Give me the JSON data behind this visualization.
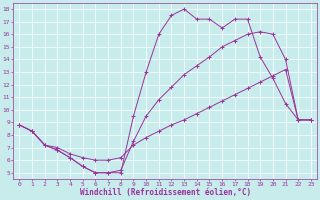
{
  "xlabel": "Windchill (Refroidissement éolien,°C)",
  "xlim": [
    -0.5,
    23.5
  ],
  "ylim": [
    4.5,
    18.5
  ],
  "xticks": [
    0,
    1,
    2,
    3,
    4,
    5,
    6,
    7,
    8,
    9,
    10,
    11,
    12,
    13,
    14,
    15,
    16,
    17,
    18,
    19,
    20,
    21,
    22,
    23
  ],
  "yticks": [
    5,
    6,
    7,
    8,
    9,
    10,
    11,
    12,
    13,
    14,
    15,
    16,
    17,
    18
  ],
  "background_color": "#c8ecec",
  "grid_color": "#ffffff",
  "line_color": "#993399",
  "line1_x": [
    0,
    1,
    2,
    3,
    4,
    5,
    6,
    7,
    8,
    9,
    10,
    11,
    12,
    13,
    14,
    15,
    16,
    17,
    18,
    19,
    20,
    21,
    22,
    23
  ],
  "line1_y": [
    8.8,
    8.3,
    7.2,
    6.8,
    6.2,
    5.5,
    5.0,
    5.0,
    5.0,
    9.5,
    13.0,
    16.0,
    17.5,
    18.0,
    17.2,
    17.2,
    16.5,
    17.2,
    17.2,
    14.2,
    12.5,
    10.5,
    9.2,
    9.2
  ],
  "line2_x": [
    0,
    1,
    2,
    3,
    4,
    5,
    6,
    7,
    8,
    9,
    10,
    11,
    12,
    13,
    14,
    15,
    16,
    17,
    18,
    19,
    20,
    21,
    22,
    23
  ],
  "line2_y": [
    8.8,
    8.3,
    7.2,
    6.8,
    6.2,
    5.5,
    5.0,
    5.0,
    5.2,
    7.5,
    9.5,
    10.8,
    11.8,
    12.8,
    13.5,
    14.2,
    15.0,
    15.5,
    16.0,
    16.2,
    16.0,
    14.0,
    9.2,
    9.2
  ],
  "line3_x": [
    0,
    1,
    2,
    3,
    4,
    5,
    6,
    7,
    8,
    9,
    10,
    11,
    12,
    13,
    14,
    15,
    16,
    17,
    18,
    19,
    20,
    21,
    22,
    23
  ],
  "line3_y": [
    8.8,
    8.3,
    7.2,
    7.0,
    6.5,
    6.2,
    6.0,
    6.0,
    6.2,
    7.2,
    7.8,
    8.3,
    8.8,
    9.2,
    9.7,
    10.2,
    10.7,
    11.2,
    11.7,
    12.2,
    12.7,
    13.2,
    9.2,
    9.2
  ],
  "marker": "+",
  "markersize": 2.5,
  "linewidth": 0.7,
  "tick_fontsize": 4.5,
  "label_fontsize": 5.5
}
